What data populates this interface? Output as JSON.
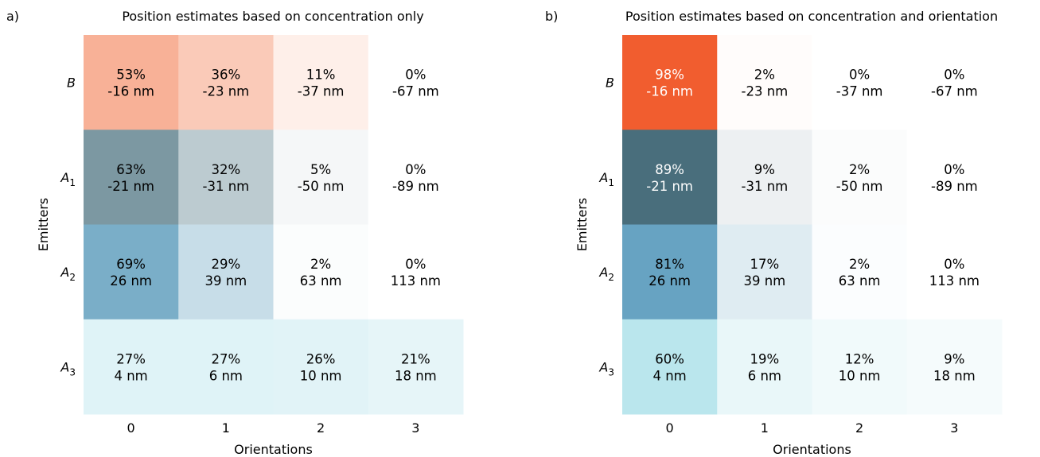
{
  "chart_data": [
    {
      "type": "heatmap",
      "panel_label": "a)",
      "title": "Position estimates based on concentration only",
      "xlabel": "Orientations",
      "ylabel": "Emitters",
      "x_categories": [
        "0",
        "1",
        "2",
        "3"
      ],
      "y_categories": [
        {
          "base": "B",
          "sub": ""
        },
        {
          "base": "A",
          "sub": "1"
        },
        {
          "base": "A",
          "sub": "2"
        },
        {
          "base": "A",
          "sub": "3"
        }
      ],
      "rows": [
        {
          "color": "#f26c3a",
          "percent": [
            53,
            36,
            11,
            0
          ],
          "shift": [
            "-16 nm",
            "-23 nm",
            "-37 nm",
            "-67 nm"
          ]
        },
        {
          "color": "#2f5b6b",
          "percent": [
            63,
            32,
            5,
            0
          ],
          "shift": [
            "-21 nm",
            "-31 nm",
            "-50 nm",
            "-89 nm"
          ]
        },
        {
          "color": "#3e89b0",
          "percent": [
            69,
            29,
            2,
            0
          ],
          "shift": [
            "26 nm",
            "39 nm",
            "63 nm",
            "113 nm"
          ]
        },
        {
          "color": "#8ad1e0",
          "percent": [
            27,
            27,
            26,
            21
          ],
          "shift": [
            "4 nm",
            "6 nm",
            "10 nm",
            "18 nm"
          ]
        }
      ],
      "grid": false,
      "legend": "none"
    },
    {
      "type": "heatmap",
      "panel_label": "b)",
      "title": "Position estimates based on concentration and orientation",
      "xlabel": "Orientations",
      "ylabel": "Emitters",
      "x_categories": [
        "0",
        "1",
        "2",
        "3"
      ],
      "y_categories": [
        {
          "base": "B",
          "sub": ""
        },
        {
          "base": "A",
          "sub": "1"
        },
        {
          "base": "A",
          "sub": "2"
        },
        {
          "base": "A",
          "sub": "3"
        }
      ],
      "rows": [
        {
          "color": "#f15a2b",
          "percent": [
            98,
            2,
            0,
            0
          ],
          "shift": [
            "-16 nm",
            "-23 nm",
            "-37 nm",
            "-67 nm"
          ]
        },
        {
          "color": "#325c6c",
          "percent": [
            89,
            9,
            2,
            0
          ],
          "shift": [
            "-21 nm",
            "-31 nm",
            "-50 nm",
            "-89 nm"
          ]
        },
        {
          "color": "#438eb4",
          "percent": [
            81,
            17,
            2,
            0
          ],
          "shift": [
            "26 nm",
            "39 nm",
            "63 nm",
            "113 nm"
          ]
        },
        {
          "color": "#8cd5e1",
          "percent": [
            60,
            19,
            12,
            9
          ],
          "shift": [
            "4 nm",
            "6 nm",
            "10 nm",
            "18 nm"
          ]
        }
      ],
      "grid": false,
      "legend": "none"
    }
  ]
}
